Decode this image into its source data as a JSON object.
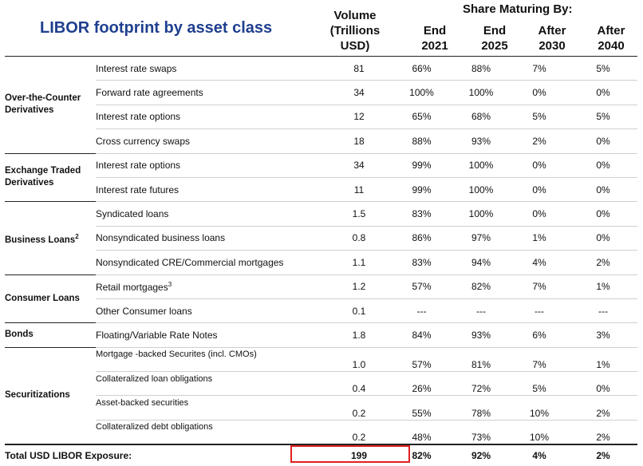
{
  "title": "LIBOR footprint by asset class",
  "headers": {
    "volume": [
      "Volume",
      "(Trillions",
      "USD)"
    ],
    "share_maturing": "Share Maturing By:",
    "end2021": [
      "End",
      "2021"
    ],
    "end2025": [
      "End",
      "2025"
    ],
    "after2030": [
      "After",
      "2030"
    ],
    "after2040": [
      "After",
      "2040"
    ]
  },
  "sections": [
    {
      "category": [
        "Over-the-Counter",
        "Derivatives"
      ],
      "rows": [
        {
          "label": "Interest rate swaps",
          "volume": "81",
          "e2021": "66%",
          "e2025": "88%",
          "a2030": "7%",
          "a2040": "5%"
        },
        {
          "label": "Forward rate agreements",
          "volume": "34",
          "e2021": "100%",
          "e2025": "100%",
          "a2030": "0%",
          "a2040": "0%"
        },
        {
          "label": "Interest rate options",
          "volume": "12",
          "e2021": "65%",
          "e2025": "68%",
          "a2030": "5%",
          "a2040": "5%"
        },
        {
          "label": "Cross currency swaps",
          "volume": "18",
          "e2021": "88%",
          "e2025": "93%",
          "a2030": "2%",
          "a2040": "0%"
        }
      ]
    },
    {
      "category": [
        "Exchange Traded",
        "Derivatives"
      ],
      "rows": [
        {
          "label": "Interest rate options",
          "volume": "34",
          "e2021": "99%",
          "e2025": "100%",
          "a2030": "0%",
          "a2040": "0%"
        },
        {
          "label": "Interest rate futures",
          "volume": "11",
          "e2021": "99%",
          "e2025": "100%",
          "a2030": "0%",
          "a2040": "0%"
        }
      ]
    },
    {
      "category": [
        "Business Loans"
      ],
      "category_sup": "2",
      "rows": [
        {
          "label": "Syndicated loans",
          "volume": "1.5",
          "e2021": "83%",
          "e2025": "100%",
          "a2030": "0%",
          "a2040": "0%"
        },
        {
          "label": "Nonsyndicated business loans",
          "volume": "0.8",
          "e2021": "86%",
          "e2025": "97%",
          "a2030": "1%",
          "a2040": "0%"
        },
        {
          "label": "Nonsyndicated CRE/Commercial mortgages",
          "volume": "1.1",
          "e2021": "83%",
          "e2025": "94%",
          "a2030": "4%",
          "a2040": "2%"
        }
      ]
    },
    {
      "category": [
        "Consumer Loans"
      ],
      "rows": [
        {
          "label": "Retail mortgages",
          "label_sup": "3",
          "volume": "1.2",
          "e2021": "57%",
          "e2025": "82%",
          "a2030": "7%",
          "a2040": "1%"
        },
        {
          "label": "Other Consumer loans",
          "volume": "0.1",
          "e2021": "---",
          "e2025": "---",
          "a2030": "---",
          "a2040": "---"
        }
      ]
    },
    {
      "category": [
        "Bonds"
      ],
      "rows": [
        {
          "label": "Floating/Variable Rate Notes",
          "volume": "1.8",
          "e2021": "84%",
          "e2025": "93%",
          "a2030": "6%",
          "a2040": "3%"
        }
      ]
    },
    {
      "category": [
        "Securitizations"
      ],
      "small": true,
      "rows": [
        {
          "label": "Mortgage -backed Securites  (incl. CMOs)",
          "volume": "1.0",
          "e2021": "57%",
          "e2025": "81%",
          "a2030": "7%",
          "a2040": "1%"
        },
        {
          "label": "Collateralized loan obligations",
          "volume": "0.4",
          "e2021": "26%",
          "e2025": "72%",
          "a2030": "5%",
          "a2040": "0%"
        },
        {
          "label": "Asset-backed securities",
          "volume": "0.2",
          "e2021": "55%",
          "e2025": "78%",
          "a2030": "10%",
          "a2040": "2%"
        },
        {
          "label": "Collateralized debt obligations",
          "volume": "0.2",
          "e2021": "48%",
          "e2025": "73%",
          "a2030": "10%",
          "a2040": "2%"
        }
      ]
    }
  ],
  "total": {
    "label": "Total USD LIBOR Exposure:",
    "volume": "199",
    "e2021": "82%",
    "e2025": "92%",
    "a2030": "4%",
    "a2040": "2%"
  },
  "highlight_color": "#e02020",
  "title_color": "#1f3f8f"
}
